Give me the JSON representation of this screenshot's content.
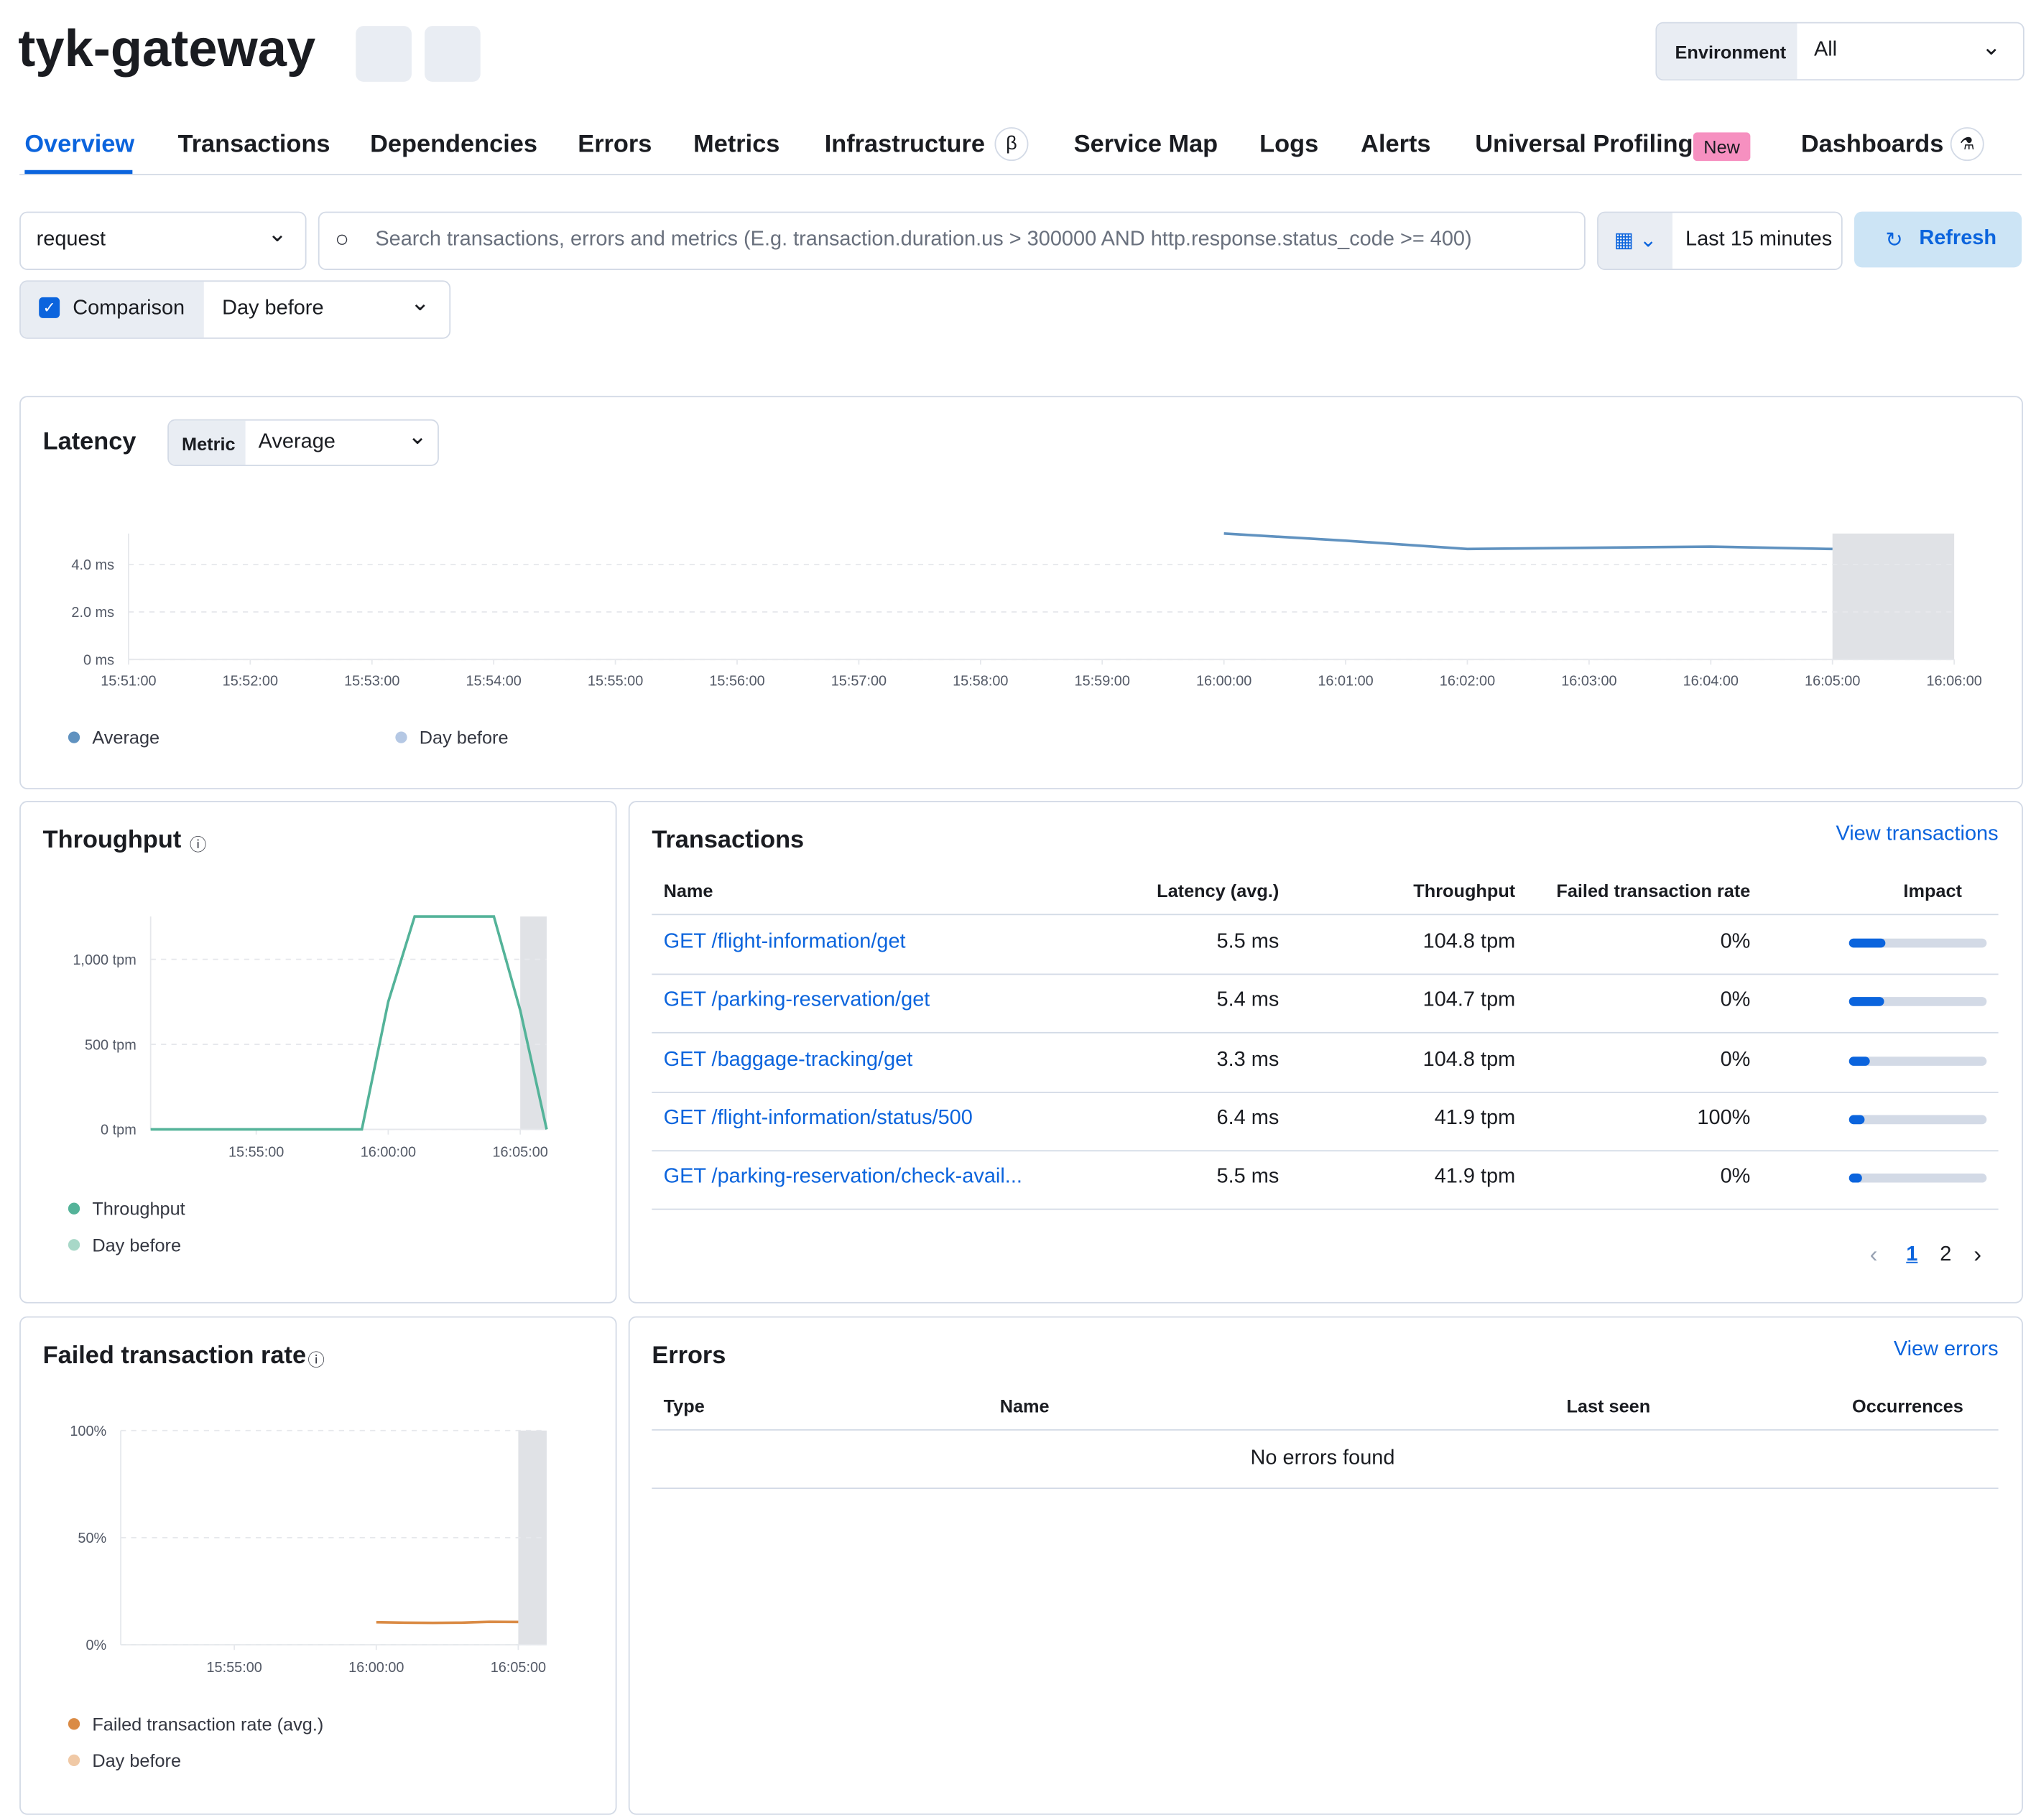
{
  "header": {
    "title": "tyk-gateway",
    "environment_label": "Environment",
    "environment_value": "All"
  },
  "tabs": [
    "Overview",
    "Transactions",
    "Dependencies",
    "Errors",
    "Metrics",
    "Infrastructure",
    "Service Map",
    "Logs",
    "Alerts",
    "Universal Profiling",
    "Dashboards"
  ],
  "tab_badges": {
    "infrastructure": "β",
    "universal_profiling": "New"
  },
  "filters": {
    "transaction_type": "request",
    "search_placeholder": "Search transactions, errors and metrics (E.g. transaction.duration.us > 300000 AND http.response.status_code >= 400)",
    "time_range": "Last 15 minutes",
    "refresh": "Refresh",
    "comparison": "Comparison",
    "comparison_value": "Day before"
  },
  "chart_data": [
    {
      "type": "line",
      "title": "Latency",
      "metric_label": "Metric",
      "metric_value": "Average",
      "x": [
        "16:00:00",
        "16:01:00",
        "16:02:00",
        "16:03:00",
        "16:04:00",
        "16:05:00"
      ],
      "series": [
        {
          "name": "Average",
          "color": "#6092c0",
          "values": [
            5.3,
            5.0,
            4.65,
            4.7,
            4.75,
            4.65
          ]
        },
        {
          "name": "Day before",
          "color": "#b5c8e4",
          "values": [
            null,
            null,
            null,
            null,
            null,
            null
          ]
        }
      ],
      "xlim": [
        "15:51:00",
        "16:06:00"
      ],
      "xticks": [
        "15:51:00",
        "15:52:00",
        "15:53:00",
        "15:54:00",
        "15:55:00",
        "15:56:00",
        "15:57:00",
        "15:58:00",
        "15:59:00",
        "16:00:00",
        "16:01:00",
        "16:02:00",
        "16:03:00",
        "16:04:00",
        "16:05:00",
        "16:06:00"
      ],
      "ylim": [
        0,
        5.3
      ],
      "yticks": [
        {
          "value": 0,
          "label": "0 ms"
        },
        {
          "value": 2,
          "label": "2.0 ms"
        },
        {
          "value": 4,
          "label": "4.0 ms"
        }
      ],
      "shaded_region": [
        "16:05:00",
        "16:06:00"
      ],
      "grid": true
    },
    {
      "type": "line",
      "title": "Throughput",
      "x": [
        "15:51:00",
        "15:52:00",
        "15:53:00",
        "15:54:00",
        "15:55:00",
        "15:56:00",
        "15:57:00",
        "15:58:00",
        "15:59:00",
        "16:00:00",
        "16:01:00",
        "16:02:00",
        "16:03:00",
        "16:04:00",
        "16:05:00",
        "16:06:00"
      ],
      "series": [
        {
          "name": "Throughput",
          "color": "#54b399",
          "values": [
            0,
            0,
            0,
            0,
            0,
            0,
            0,
            0,
            0,
            750,
            1252,
            1252,
            1252,
            1252,
            700,
            0
          ]
        },
        {
          "name": "Day before",
          "color": "#a8d8c8",
          "values": [
            null,
            null,
            null,
            null,
            null,
            null,
            null,
            null,
            null,
            null,
            null,
            null,
            null,
            null,
            null,
            null
          ]
        }
      ],
      "xlim": [
        "15:51:00",
        "16:06:00"
      ],
      "xticks": [
        "15:55:00",
        "16:00:00",
        "16:05:00"
      ],
      "ylim": [
        0,
        1252
      ],
      "yticks": [
        {
          "value": 0,
          "label": "0 tpm"
        },
        {
          "value": 500,
          "label": "500 tpm"
        },
        {
          "value": 1000,
          "label": "1,000 tpm"
        }
      ],
      "shaded_region": [
        "16:05:00",
        "16:06:00"
      ],
      "grid": true
    },
    {
      "type": "line",
      "title": "Failed transaction rate",
      "x": [
        "16:00:00",
        "16:01:00",
        "16:02:00",
        "16:03:00",
        "16:04:00",
        "16:05:00"
      ],
      "series": [
        {
          "name": "Failed transaction rate (avg.)",
          "color": "#da8b45",
          "values": [
            10.5,
            10.3,
            10.2,
            10.3,
            10.7,
            10.6
          ]
        },
        {
          "name": "Day before",
          "color": "#f0c9a6",
          "values": [
            null,
            null,
            null,
            null,
            null,
            null
          ]
        }
      ],
      "xlim": [
        "15:51:00",
        "16:06:00"
      ],
      "xticks": [
        "15:55:00",
        "16:00:00",
        "16:05:00"
      ],
      "ylim": [
        0,
        100
      ],
      "yticks": [
        {
          "value": 0,
          "label": "0%"
        },
        {
          "value": 50,
          "label": "50%"
        },
        {
          "value": 100,
          "label": "100%"
        }
      ],
      "shaded_region": [
        "16:05:00",
        "16:06:00"
      ],
      "grid": true
    }
  ],
  "transactions": {
    "title": "Transactions",
    "link": "View transactions",
    "columns": [
      "Name",
      "Latency (avg.)",
      "Throughput",
      "Failed transaction rate",
      "Impact"
    ],
    "rows": [
      {
        "name": "GET /flight-information/get",
        "latency": "5.5 ms",
        "throughput": "104.8 tpm",
        "failed_rate": "0%",
        "impact": 26
      },
      {
        "name": "GET /parking-reservation/get",
        "latency": "5.4 ms",
        "throughput": "104.7 tpm",
        "failed_rate": "0%",
        "impact": 25
      },
      {
        "name": "GET /baggage-tracking/get",
        "latency": "3.3 ms",
        "throughput": "104.8 tpm",
        "failed_rate": "0%",
        "impact": 15
      },
      {
        "name": "GET /flight-information/status/500",
        "latency": "6.4 ms",
        "throughput": "41.9 tpm",
        "failed_rate": "100%",
        "impact": 11
      },
      {
        "name": "GET /parking-reservation/check-avail...",
        "latency": "5.5 ms",
        "throughput": "41.9 tpm",
        "failed_rate": "0%",
        "impact": 9
      }
    ],
    "pages": [
      "1",
      "2"
    ]
  },
  "errors": {
    "title": "Errors",
    "link": "View errors",
    "columns": [
      "Type",
      "Name",
      "Last seen",
      "Occurrences"
    ],
    "empty": "No errors found"
  }
}
